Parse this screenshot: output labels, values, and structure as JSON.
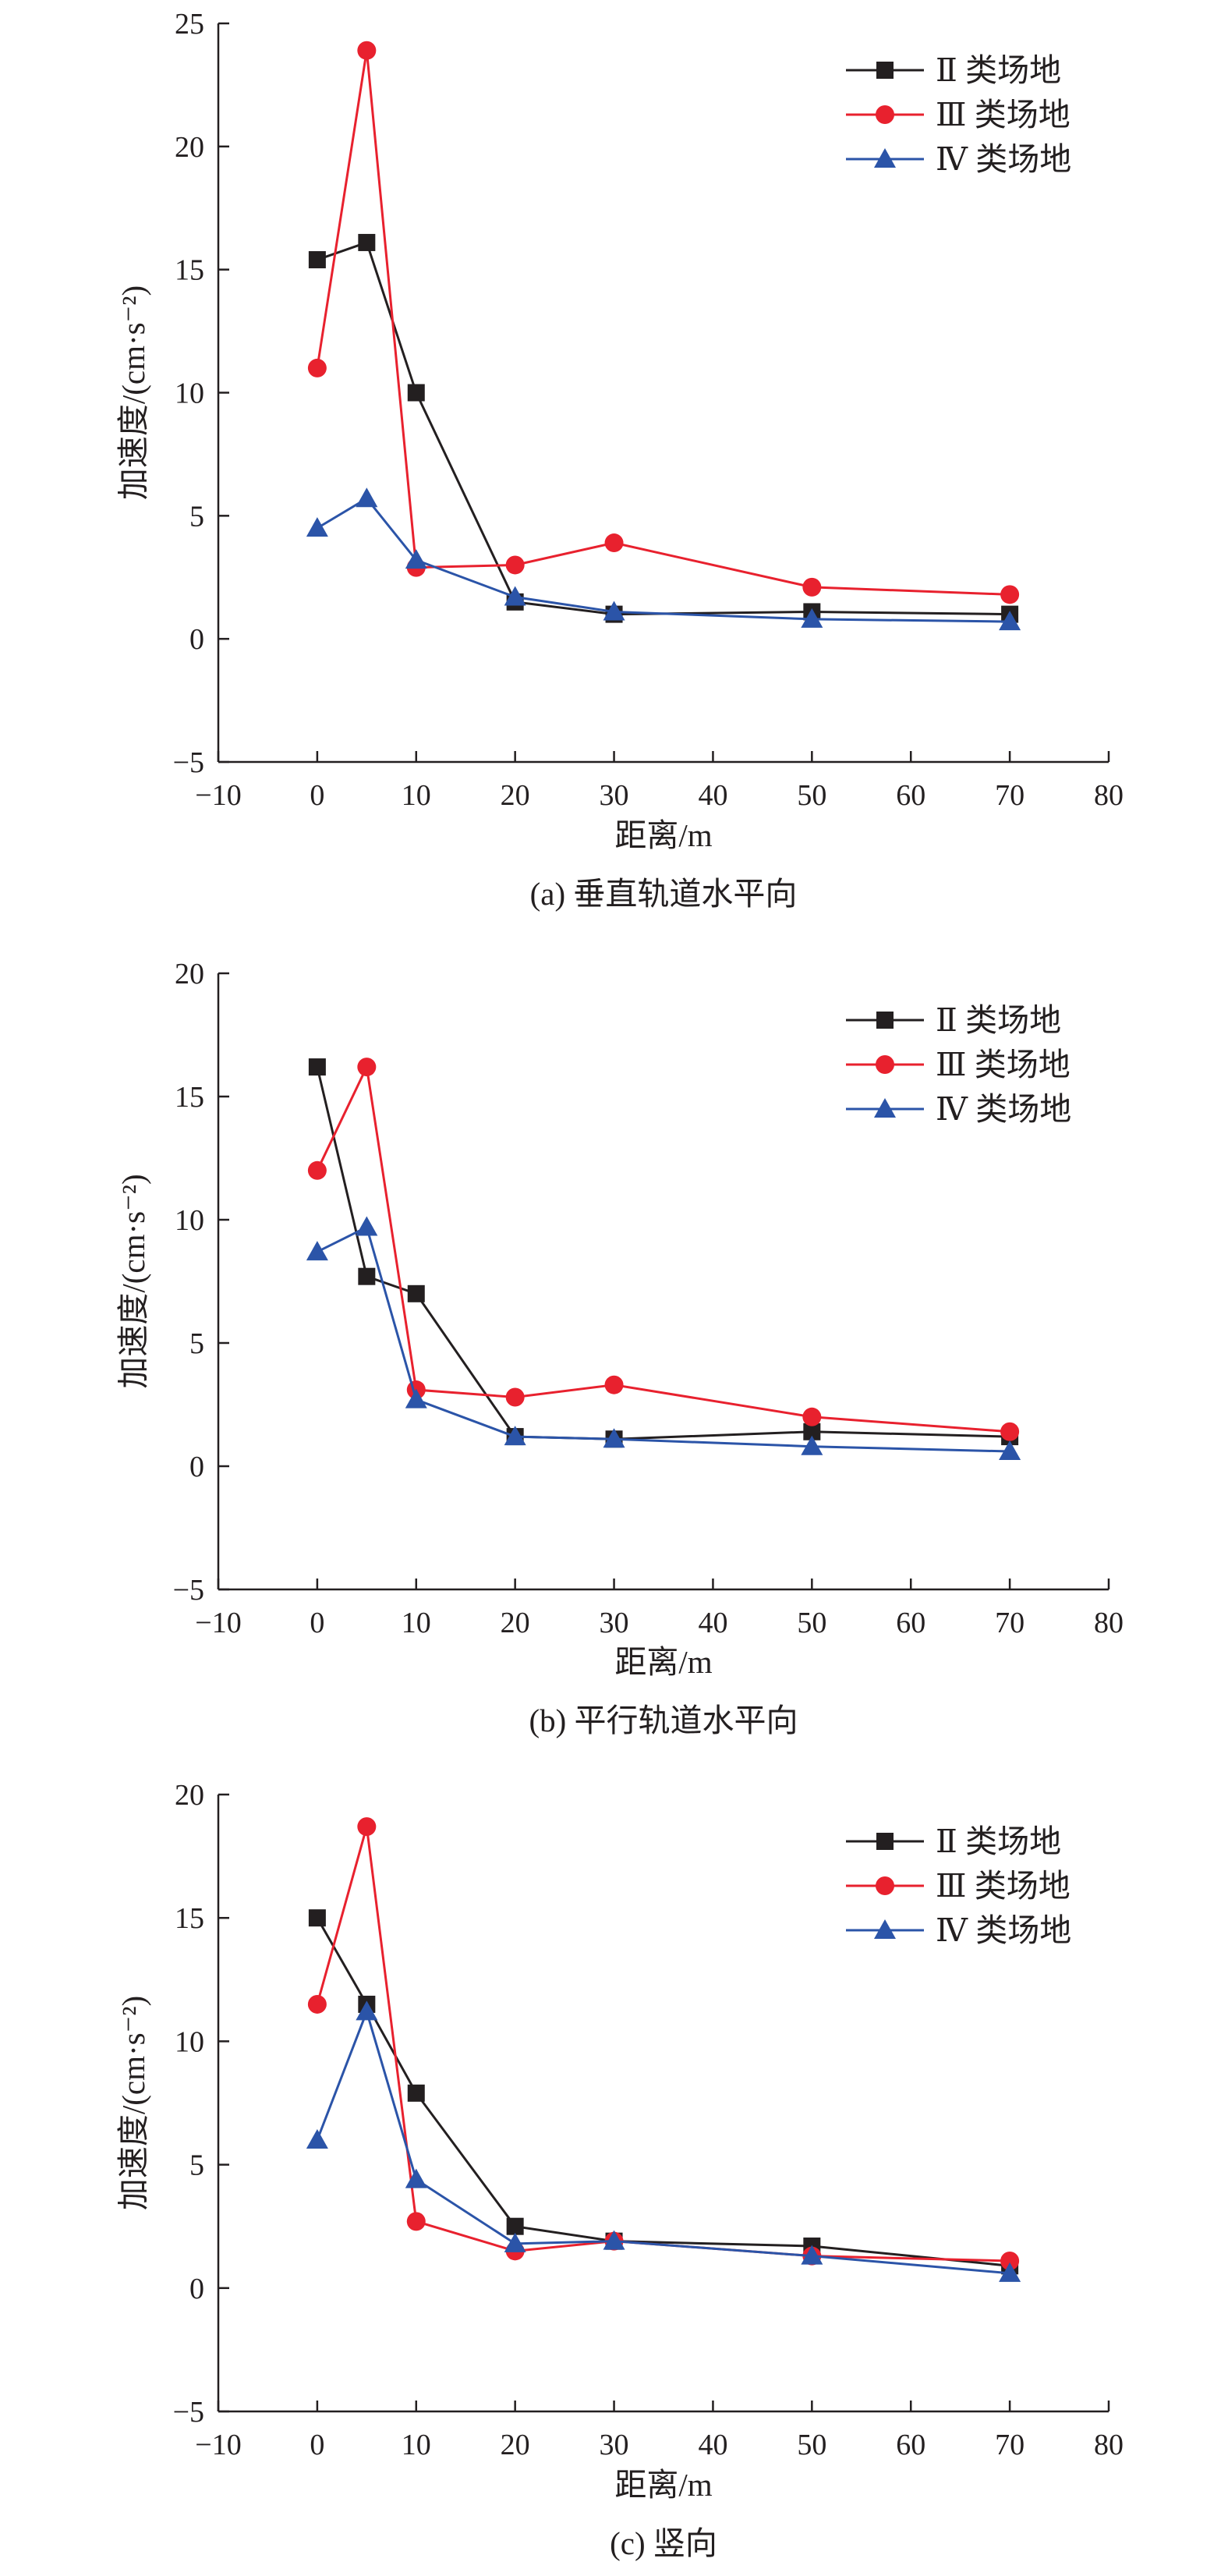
{
  "chart_data": [
    {
      "type": "line",
      "caption": "(a) 垂直轨道水平向",
      "xlabel": "距离/m",
      "ylabel": "加速度/(cm·s⁻²)",
      "xlim": [
        -10,
        80
      ],
      "ylim": [
        -5,
        25
      ],
      "xticks": [
        -10,
        0,
        10,
        20,
        30,
        40,
        50,
        60,
        70,
        80
      ],
      "yticks": [
        -5,
        0,
        5,
        10,
        15,
        20,
        25
      ],
      "x": [
        0,
        5,
        10,
        20,
        30,
        50,
        70
      ],
      "legend_position": "top-right",
      "series": [
        {
          "name": "Ⅱ 类场地",
          "color": "#231f20",
          "marker": "square",
          "values": [
            15.4,
            16.1,
            10.0,
            1.5,
            1.0,
            1.1,
            1.0
          ]
        },
        {
          "name": "Ⅲ 类场地",
          "color": "#e8212e",
          "marker": "circle",
          "values": [
            11.0,
            23.9,
            2.9,
            3.0,
            3.9,
            2.1,
            1.8
          ]
        },
        {
          "name": "Ⅳ 类场地",
          "color": "#2b54a8",
          "marker": "triangle",
          "values": [
            4.5,
            5.7,
            3.2,
            1.7,
            1.1,
            0.8,
            0.7
          ]
        }
      ]
    },
    {
      "type": "line",
      "caption": "(b) 平行轨道水平向",
      "xlabel": "距离/m",
      "ylabel": "加速度/(cm·s⁻²)",
      "xlim": [
        -10,
        80
      ],
      "ylim": [
        -5,
        20
      ],
      "xticks": [
        -10,
        0,
        10,
        20,
        30,
        40,
        50,
        60,
        70,
        80
      ],
      "yticks": [
        -5,
        0,
        5,
        10,
        15,
        20
      ],
      "x": [
        0,
        5,
        10,
        20,
        30,
        50,
        70
      ],
      "legend_position": "top-right",
      "series": [
        {
          "name": "Ⅱ 类场地",
          "color": "#231f20",
          "marker": "square",
          "values": [
            16.2,
            7.7,
            7.0,
            1.2,
            1.1,
            1.4,
            1.2
          ]
        },
        {
          "name": "Ⅲ 类场地",
          "color": "#e8212e",
          "marker": "circle",
          "values": [
            12.0,
            16.2,
            3.1,
            2.8,
            3.3,
            2.0,
            1.4
          ]
        },
        {
          "name": "Ⅳ 类场地",
          "color": "#2b54a8",
          "marker": "triangle",
          "values": [
            8.7,
            9.7,
            2.7,
            1.2,
            1.1,
            0.8,
            0.6
          ]
        }
      ]
    },
    {
      "type": "line",
      "caption": "(c) 竖向",
      "xlabel": "距离/m",
      "ylabel": "加速度/(cm·s⁻²)",
      "xlim": [
        -10,
        80
      ],
      "ylim": [
        -5,
        20
      ],
      "xticks": [
        -10,
        0,
        10,
        20,
        30,
        40,
        50,
        60,
        70,
        80
      ],
      "yticks": [
        -5,
        0,
        5,
        10,
        15,
        20
      ],
      "x": [
        0,
        5,
        10,
        20,
        30,
        50,
        70
      ],
      "legend_position": "top-right",
      "series": [
        {
          "name": "Ⅱ 类场地",
          "color": "#231f20",
          "marker": "square",
          "values": [
            15.0,
            11.5,
            7.9,
            2.5,
            1.9,
            1.7,
            0.9
          ]
        },
        {
          "name": "Ⅲ 类场地",
          "color": "#e8212e",
          "marker": "circle",
          "values": [
            11.5,
            18.7,
            2.7,
            1.5,
            1.9,
            1.3,
            1.1
          ]
        },
        {
          "name": "Ⅳ 类场地",
          "color": "#2b54a8",
          "marker": "triangle",
          "values": [
            6.0,
            11.2,
            4.4,
            1.8,
            1.9,
            1.3,
            0.6
          ]
        }
      ]
    }
  ]
}
